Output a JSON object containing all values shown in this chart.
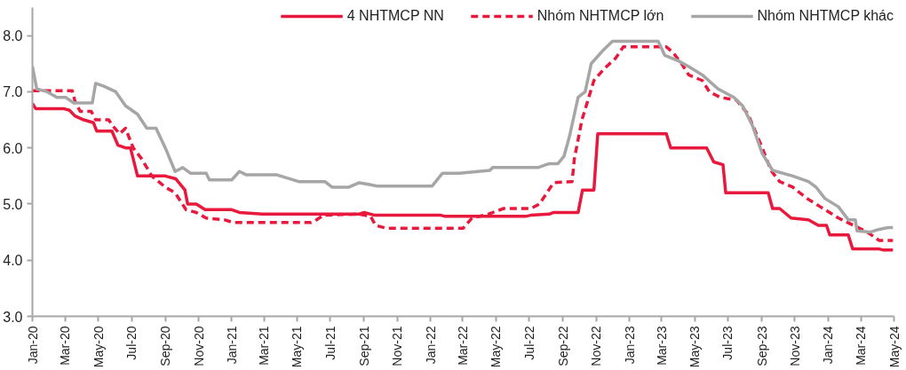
{
  "chart_data": {
    "type": "line",
    "xlim": [
      "2020-01-01",
      "2024-05-01"
    ],
    "xticks": [
      {
        "value": "2020-01-01",
        "label": "Jan-20"
      },
      {
        "value": "2020-03-01",
        "label": "Mar-20"
      },
      {
        "value": "2020-05-01",
        "label": "May-20"
      },
      {
        "value": "2020-07-01",
        "label": "Jul-20"
      },
      {
        "value": "2020-09-01",
        "label": "Sep-20"
      },
      {
        "value": "2020-11-01",
        "label": "Nov-20"
      },
      {
        "value": "2021-01-01",
        "label": "Jan-21"
      },
      {
        "value": "2021-03-01",
        "label": "Mar-21"
      },
      {
        "value": "2021-05-01",
        "label": "May-21"
      },
      {
        "value": "2021-07-01",
        "label": "Jul-21"
      },
      {
        "value": "2021-09-01",
        "label": "Sep-21"
      },
      {
        "value": "2021-11-01",
        "label": "Nov-21"
      },
      {
        "value": "2022-01-01",
        "label": "Jan-22"
      },
      {
        "value": "2022-03-01",
        "label": "Mar-22"
      },
      {
        "value": "2022-05-01",
        "label": "May-22"
      },
      {
        "value": "2022-07-01",
        "label": "Jul-22"
      },
      {
        "value": "2022-09-01",
        "label": "Sep-22"
      },
      {
        "value": "2022-11-01",
        "label": "Nov-22"
      },
      {
        "value": "2023-01-01",
        "label": "Jan-23"
      },
      {
        "value": "2023-03-01",
        "label": "Mar-23"
      },
      {
        "value": "2023-05-01",
        "label": "May-23"
      },
      {
        "value": "2023-07-01",
        "label": "Jul-23"
      },
      {
        "value": "2023-09-01",
        "label": "Sep-23"
      },
      {
        "value": "2023-11-01",
        "label": "Nov-23"
      },
      {
        "value": "2024-01-01",
        "label": "Jan-24"
      },
      {
        "value": "2024-03-01",
        "label": "Mar-24"
      },
      {
        "value": "2024-05-01",
        "label": "May-24"
      }
    ],
    "ylim": [
      3,
      8.5
    ],
    "yticks": [
      {
        "value": 3,
        "label": "3.0"
      },
      {
        "value": 4,
        "label": "4.0"
      },
      {
        "value": 5,
        "label": "5.0"
      },
      {
        "value": 6,
        "label": "6.0"
      },
      {
        "value": 7,
        "label": "7.0"
      },
      {
        "value": 8,
        "label": "8.0"
      }
    ],
    "grid": false,
    "legend": "top right",
    "marker": "none",
    "series": [
      {
        "name": "4 NHTMCP NN",
        "color": "#e8193c",
        "line_style": "solid",
        "x": [
          "2020-01-01",
          "2020-01-07",
          "2020-02-27",
          "2020-03-09",
          "2020-03-19",
          "2020-04-04",
          "2020-04-22",
          "2020-04-28",
          "2020-05-26",
          "2020-06-06",
          "2020-06-20",
          "2020-06-29",
          "2020-07-12",
          "2020-09-01",
          "2020-09-20",
          "2020-10-07",
          "2020-10-12",
          "2020-10-28",
          "2020-11-13",
          "2021-01-01",
          "2021-01-15",
          "2021-02-26",
          "2021-08-23",
          "2021-09-01",
          "2021-09-21",
          "2022-01-20",
          "2022-01-28",
          "2022-06-24",
          "2022-07-04",
          "2022-08-07",
          "2022-08-15",
          "2022-09-29",
          "2022-10-07",
          "2022-10-28",
          "2022-11-04",
          "2023-03-10",
          "2023-03-18",
          "2023-05-23",
          "2023-06-05",
          "2023-06-22",
          "2023-06-27",
          "2023-09-13",
          "2023-09-21",
          "2023-10-04",
          "2023-10-25",
          "2023-11-26",
          "2023-12-14",
          "2023-12-29",
          "2024-01-04",
          "2024-02-07",
          "2024-02-15",
          "2024-04-04",
          "2024-04-12",
          "2024-04-29"
        ],
        "values": [
          6.79,
          6.7,
          6.7,
          6.67,
          6.57,
          6.5,
          6.45,
          6.3,
          6.3,
          6.05,
          6.0,
          6.0,
          5.5,
          5.5,
          5.45,
          5.25,
          5.0,
          5.0,
          4.9,
          4.9,
          4.85,
          4.82,
          4.82,
          4.85,
          4.8,
          4.8,
          4.78,
          4.78,
          4.8,
          4.82,
          4.85,
          4.85,
          5.25,
          5.25,
          6.25,
          6.25,
          6.0,
          6.0,
          5.75,
          5.7,
          5.2,
          5.2,
          4.92,
          4.92,
          4.75,
          4.72,
          4.62,
          4.62,
          4.45,
          4.45,
          4.2,
          4.2,
          4.18,
          4.18
        ]
      },
      {
        "name": "Nhóm NHTMCP lớn",
        "color": "#e8193c",
        "line_style": "dashed",
        "x": [
          "2020-01-01",
          "2020-03-14",
          "2020-03-20",
          "2020-03-29",
          "2020-04-18",
          "2020-04-26",
          "2020-05-20",
          "2020-05-27",
          "2020-06-09",
          "2020-06-20",
          "2020-07-04",
          "2020-07-20",
          "2020-08-07",
          "2020-09-01",
          "2020-09-19",
          "2020-10-09",
          "2020-10-28",
          "2020-11-15",
          "2020-12-18",
          "2021-01-04",
          "2021-05-26",
          "2021-06-03",
          "2021-06-18",
          "2021-08-23",
          "2021-09-13",
          "2021-09-22",
          "2021-10-12",
          "2022-03-02",
          "2022-03-18",
          "2022-04-17",
          "2022-05-15",
          "2022-07-04",
          "2022-07-20",
          "2022-08-15",
          "2022-09-18",
          "2022-09-22",
          "2022-10-06",
          "2022-10-28",
          "2022-11-15",
          "2022-12-07",
          "2022-12-21",
          "2023-03-10",
          "2023-03-22",
          "2023-04-07",
          "2023-04-20",
          "2023-05-15",
          "2023-05-28",
          "2023-06-17",
          "2023-07-17",
          "2023-08-07",
          "2023-09-02",
          "2023-09-18",
          "2023-10-04",
          "2023-10-28",
          "2023-11-23",
          "2023-12-18",
          "2024-01-20",
          "2024-03-13",
          "2024-04-04",
          "2024-04-29"
        ],
        "values": [
          7.02,
          7.02,
          6.8,
          6.65,
          6.65,
          6.5,
          6.5,
          6.4,
          6.25,
          6.35,
          6.0,
          5.8,
          5.5,
          5.3,
          5.2,
          4.9,
          4.85,
          4.75,
          4.72,
          4.67,
          4.67,
          4.7,
          4.8,
          4.82,
          4.78,
          4.62,
          4.57,
          4.57,
          4.75,
          4.82,
          4.92,
          4.92,
          5.0,
          5.38,
          5.4,
          5.8,
          6.5,
          7.2,
          7.4,
          7.6,
          7.8,
          7.8,
          7.7,
          7.5,
          7.3,
          7.2,
          7.0,
          6.9,
          6.85,
          6.6,
          6.0,
          5.6,
          5.4,
          5.3,
          5.1,
          4.95,
          4.75,
          4.5,
          4.35,
          4.35
        ]
      },
      {
        "name": "Nhóm NHTMCP khác",
        "color": "#a6a6a6",
        "line_style": "solid",
        "x": [
          "2020-01-01",
          "2020-01-09",
          "2020-01-28",
          "2020-02-15",
          "2020-03-02",
          "2020-03-17",
          "2020-04-20",
          "2020-04-26",
          "2020-05-11",
          "2020-06-02",
          "2020-06-20",
          "2020-07-12",
          "2020-07-29",
          "2020-08-15",
          "2020-09-01",
          "2020-09-19",
          "2020-10-03",
          "2020-10-17",
          "2020-11-15",
          "2020-11-21",
          "2021-01-01",
          "2021-01-15",
          "2021-01-28",
          "2021-03-25",
          "2021-05-04",
          "2021-06-21",
          "2021-07-04",
          "2021-08-04",
          "2021-08-23",
          "2021-09-09",
          "2021-09-25",
          "2022-01-04",
          "2022-01-23",
          "2022-02-23",
          "2022-04-20",
          "2022-04-25",
          "2022-07-17",
          "2022-08-07",
          "2022-08-23",
          "2022-09-03",
          "2022-09-13",
          "2022-09-29",
          "2022-10-12",
          "2022-10-23",
          "2022-11-15",
          "2022-12-01",
          "2023-02-23",
          "2023-03-07",
          "2023-04-01",
          "2023-04-20",
          "2023-05-15",
          "2023-06-13",
          "2023-07-12",
          "2023-07-28",
          "2023-08-15",
          "2023-09-02",
          "2023-09-21",
          "2023-10-28",
          "2023-11-26",
          "2023-12-10",
          "2023-12-26",
          "2024-01-20",
          "2024-02-07",
          "2024-02-20",
          "2024-02-23",
          "2024-03-18",
          "2024-04-04",
          "2024-04-20",
          "2024-04-29"
        ],
        "values": [
          7.45,
          7.05,
          7.0,
          6.9,
          6.9,
          6.8,
          6.8,
          7.15,
          7.1,
          7.0,
          6.75,
          6.6,
          6.35,
          6.35,
          6.0,
          5.58,
          5.65,
          5.55,
          5.55,
          5.43,
          5.43,
          5.58,
          5.52,
          5.52,
          5.4,
          5.4,
          5.3,
          5.3,
          5.38,
          5.35,
          5.32,
          5.32,
          5.55,
          5.55,
          5.6,
          5.65,
          5.65,
          5.72,
          5.72,
          5.85,
          6.2,
          6.9,
          7.0,
          7.5,
          7.75,
          7.9,
          7.9,
          7.65,
          7.55,
          7.45,
          7.3,
          7.05,
          6.9,
          6.75,
          6.4,
          5.9,
          5.6,
          5.5,
          5.4,
          5.3,
          5.1,
          4.95,
          4.72,
          4.72,
          4.52,
          4.5,
          4.55,
          4.58,
          4.58
        ]
      }
    ]
  }
}
